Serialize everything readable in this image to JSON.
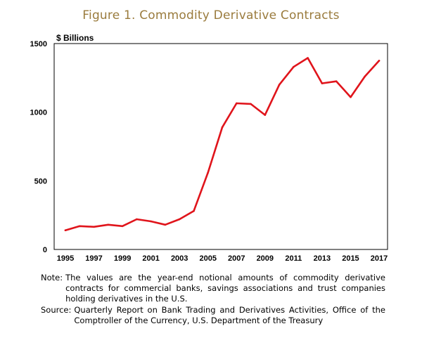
{
  "figure": {
    "title": "Figure 1. Commodity Derivative Contracts"
  },
  "chart_data": {
    "type": "line",
    "title": "Figure 1. Commodity Derivative Contracts",
    "ylabel": "$ Billions",
    "xlabel": "",
    "ylim": [
      0,
      1500
    ],
    "xlim": [
      1995,
      2017
    ],
    "y_ticks": [
      0,
      500,
      1000,
      1500
    ],
    "x_ticks": [
      1995,
      1997,
      1999,
      2001,
      2003,
      2005,
      2007,
      2009,
      2011,
      2013,
      2015,
      2017
    ],
    "grid": false,
    "legend": "none",
    "line_color": "#e0141b",
    "series": [
      {
        "x": [
          1995,
          1996,
          1997,
          1998,
          1999,
          2000,
          2001,
          2002,
          2003,
          2004,
          2005,
          2006,
          2007,
          2008,
          2009,
          2010,
          2011,
          2012,
          2013,
          2014,
          2015,
          2016,
          2017
        ],
        "values": [
          140,
          170,
          165,
          180,
          170,
          220,
          205,
          180,
          220,
          280,
          560,
          890,
          1065,
          1060,
          980,
          1200,
          1330,
          1395,
          1210,
          1225,
          1110,
          1260,
          1375
        ]
      }
    ]
  },
  "notes": {
    "note_label": "Note:",
    "note_text": "The values are the year-end notional amounts of commodity derivative contracts for commercial banks, savings associations and trust companies holding derivatives in the U.S.",
    "source_label": "Source:",
    "source_text": "Quarterly Report on Bank Trading and Derivatives Activities, Office of the Comptroller of the Currency, U.S. Department of the Treasury"
  }
}
